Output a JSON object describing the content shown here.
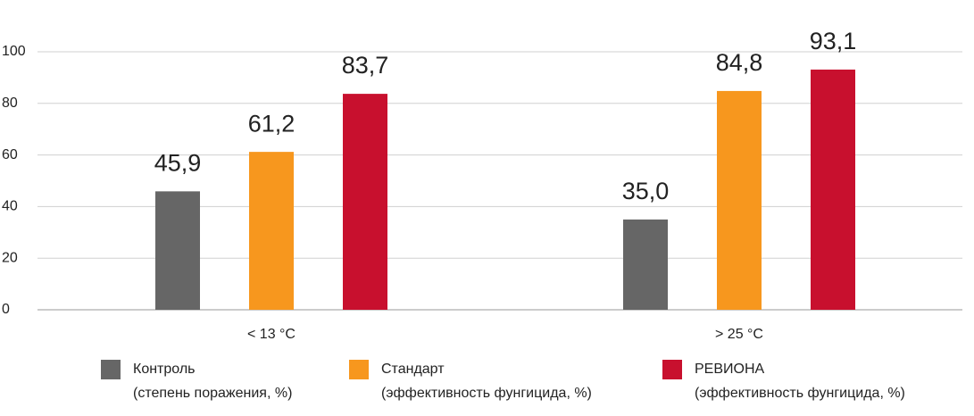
{
  "chart_data": {
    "type": "bar",
    "categories": [
      "< 13 °C",
      "> 25 °C"
    ],
    "series": [
      {
        "name": "Контроль",
        "note": "(степень поражения, %)",
        "color": "#666666",
        "values": [
          45.9,
          35.0
        ],
        "value_labels": [
          "45,9",
          "35,0"
        ]
      },
      {
        "name": "Стандарт",
        "note": "(эффективность фунгицида, %)",
        "color": "#f7971e",
        "values": [
          61.2,
          84.8
        ],
        "value_labels": [
          "61,2",
          "84,8"
        ]
      },
      {
        "name": "РЕВИОНА",
        "note": "(эффективность фунгицида, %)",
        "color": "#c8102e",
        "values": [
          83.7,
          93.1
        ],
        "value_labels": [
          "83,7",
          "93,1"
        ]
      }
    ],
    "ylim": [
      0,
      100
    ],
    "yticks": [
      0,
      20,
      40,
      60,
      80,
      100
    ],
    "grid": true,
    "legend": "bottom"
  }
}
